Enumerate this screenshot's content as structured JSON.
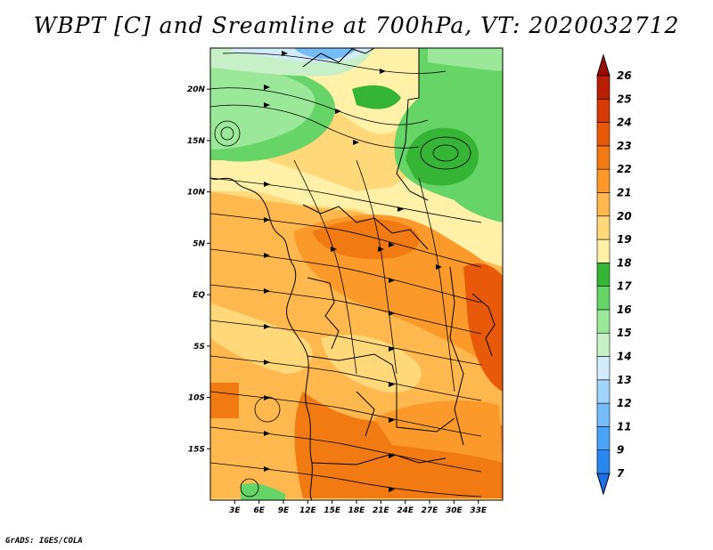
{
  "title": "WBPT [C] and Sreamline at 700hPa, VT: 2020032712",
  "credit": "GrADS: IGES/COLA",
  "map": {
    "lon_range": [
      0,
      36
    ],
    "lat_range": [
      -20,
      24
    ],
    "x_ticks": [
      {
        "v": 3,
        "label": "3E"
      },
      {
        "v": 6,
        "label": "6E"
      },
      {
        "v": 9,
        "label": "9E"
      },
      {
        "v": 12,
        "label": "12E"
      },
      {
        "v": 15,
        "label": "15E"
      },
      {
        "v": 18,
        "label": "18E"
      },
      {
        "v": 21,
        "label": "21E"
      },
      {
        "v": 24,
        "label": "24E"
      },
      {
        "v": 27,
        "label": "27E"
      },
      {
        "v": 30,
        "label": "30E"
      },
      {
        "v": 33,
        "label": "33E"
      }
    ],
    "y_ticks": [
      {
        "v": 20,
        "label": "20N"
      },
      {
        "v": 15,
        "label": "15N"
      },
      {
        "v": 10,
        "label": "10N"
      },
      {
        "v": 5,
        "label": "5N"
      },
      {
        "v": 0,
        "label": "EQ"
      },
      {
        "v": -5,
        "label": "5S"
      },
      {
        "v": -10,
        "label": "10S"
      },
      {
        "v": -15,
        "label": "15S"
      }
    ]
  },
  "colorbar": {
    "levels": [
      "7",
      "9",
      "11",
      "12",
      "13",
      "14",
      "15",
      "16",
      "17",
      "18",
      "19",
      "20",
      "21",
      "22",
      "23",
      "24",
      "25",
      "26"
    ],
    "colors": [
      "#1e6ee8",
      "#2b87f0",
      "#4ba3f5",
      "#74bdf9",
      "#a0d4fb",
      "#d2ecfb",
      "#c8f0c8",
      "#9be89b",
      "#66d466",
      "#36b436",
      "#fff2a8",
      "#ffd87a",
      "#ffb84d",
      "#fb9a2a",
      "#f27a12",
      "#e85a0a",
      "#d63a06",
      "#b81e04",
      "#9a0a02"
    ]
  },
  "colors": {
    "coast": "#000000",
    "streamline": "#000000"
  }
}
